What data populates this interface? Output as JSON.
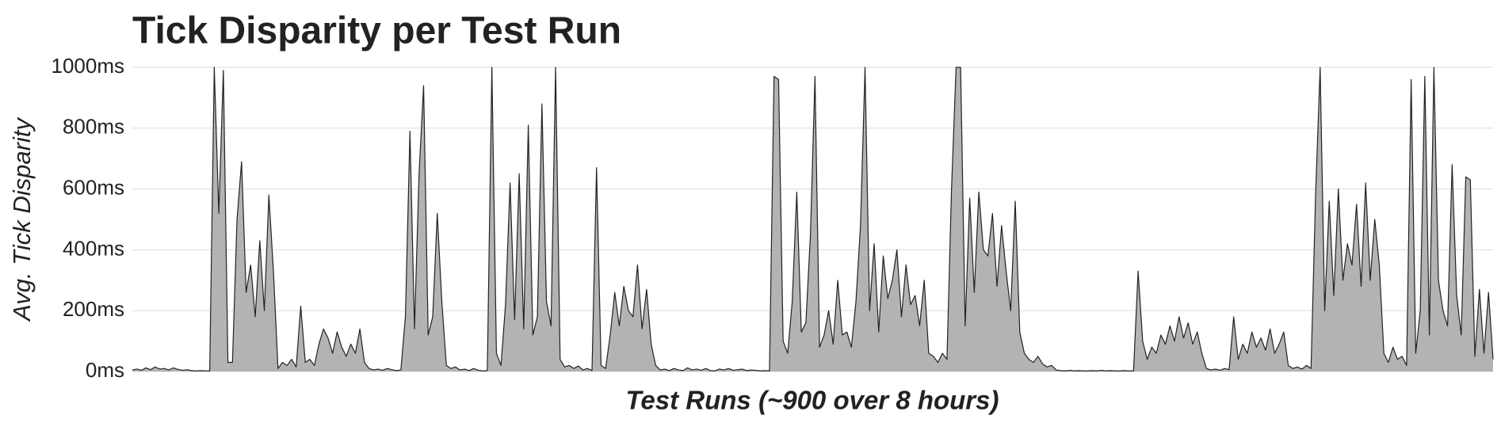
{
  "chart_data": {
    "type": "area",
    "title": "Tick Disparity per Test Run",
    "xlabel": "Test Runs (~900 over 8 hours)",
    "ylabel": "Avg. Tick Disparity",
    "values": [
      5,
      8,
      4,
      12,
      6,
      15,
      8,
      10,
      5,
      12,
      7,
      4,
      6,
      3,
      2,
      3,
      2,
      2,
      1000,
      520,
      990,
      30,
      30,
      500,
      690,
      260,
      350,
      180,
      430,
      200,
      580,
      330,
      10,
      30,
      20,
      40,
      15,
      215,
      30,
      40,
      20,
      90,
      140,
      110,
      60,
      130,
      80,
      50,
      90,
      60,
      140,
      30,
      10,
      5,
      8,
      4,
      10,
      6,
      3,
      5,
      180,
      790,
      140,
      650,
      940,
      120,
      180,
      520,
      230,
      20,
      10,
      15,
      5,
      8,
      3,
      10,
      4,
      2,
      3,
      1000,
      60,
      20,
      220,
      620,
      170,
      650,
      140,
      810,
      120,
      180,
      880,
      230,
      150,
      1000,
      40,
      15,
      20,
      10,
      18,
      5,
      10,
      3,
      670,
      20,
      10,
      120,
      260,
      150,
      280,
      200,
      180,
      350,
      140,
      270,
      90,
      20,
      5,
      8,
      3,
      10,
      5,
      3,
      12,
      5,
      8,
      4,
      10,
      3,
      2,
      8,
      5,
      10,
      4,
      6,
      8,
      3,
      5,
      4,
      2,
      3,
      2,
      970,
      960,
      100,
      60,
      230,
      590,
      130,
      160,
      450,
      970,
      80,
      120,
      200,
      90,
      300,
      120,
      130,
      80,
      230,
      480,
      1000,
      200,
      420,
      130,
      380,
      240,
      300,
      400,
      180,
      350,
      220,
      250,
      150,
      300,
      60,
      50,
      30,
      60,
      40,
      600,
      1000,
      1000,
      150,
      570,
      260,
      590,
      400,
      380,
      520,
      280,
      480,
      330,
      200,
      560,
      130,
      60,
      40,
      30,
      50,
      25,
      15,
      20,
      5,
      3,
      2,
      4,
      2,
      3,
      2,
      2,
      3,
      2,
      4,
      2,
      3,
      2,
      2,
      3,
      2,
      2,
      330,
      100,
      40,
      80,
      60,
      120,
      90,
      150,
      100,
      180,
      110,
      160,
      90,
      130,
      60,
      10,
      5,
      8,
      4,
      10,
      6,
      180,
      40,
      90,
      60,
      130,
      80,
      110,
      70,
      140,
      60,
      90,
      130,
      20,
      10,
      15,
      8,
      20,
      10,
      580,
      1000,
      200,
      560,
      250,
      600,
      300,
      420,
      350,
      550,
      280,
      620,
      300,
      500,
      350,
      60,
      30,
      80,
      40,
      50,
      20,
      960,
      60,
      200,
      970,
      120,
      1000,
      300,
      200,
      150,
      680,
      250,
      120,
      640,
      630,
      50,
      270,
      60,
      260,
      40
    ],
    "color": "#b3b3b3",
    "line_color": "#222222",
    "ylim": [
      0,
      1000
    ],
    "yticks": [
      {
        "value": 0,
        "label": "0ms"
      },
      {
        "value": 200,
        "label": "200ms"
      },
      {
        "value": 400,
        "label": "400ms"
      },
      {
        "value": 600,
        "label": "600ms"
      },
      {
        "value": 800,
        "label": "800ms"
      },
      {
        "value": 1000,
        "label": "1000ms"
      }
    ],
    "grid": true
  }
}
